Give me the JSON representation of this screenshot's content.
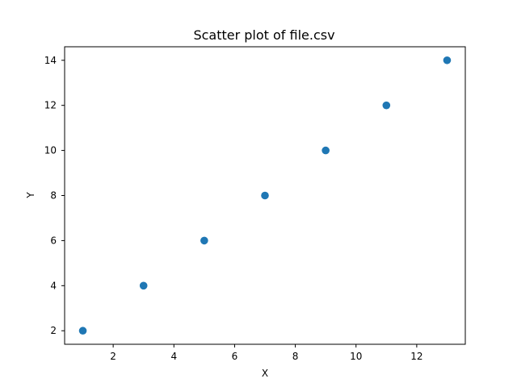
{
  "chart_data": {
    "type": "scatter",
    "title": "Scatter plot of file.csv",
    "xlabel": "X",
    "ylabel": "Y",
    "x": [
      1,
      3,
      5,
      7,
      9,
      11,
      13
    ],
    "y": [
      2,
      4,
      6,
      8,
      10,
      12,
      14
    ],
    "xlim": [
      0.4,
      13.6
    ],
    "ylim": [
      1.4,
      14.6
    ],
    "xticks": [
      2,
      4,
      6,
      8,
      10,
      12
    ],
    "yticks": [
      2,
      4,
      6,
      8,
      10,
      12,
      14
    ],
    "grid": false,
    "marker_color": "#1f77b4"
  }
}
